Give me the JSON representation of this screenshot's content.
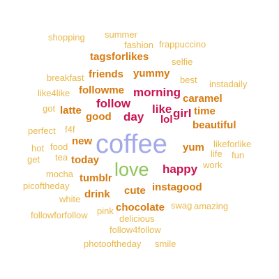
{
  "colors": {
    "gold": "#e8b84a",
    "orange": "#d67a10",
    "crimson": "#c8134f",
    "periwinkle": "#a3a8e9",
    "green": "#8fc45a"
  },
  "words": [
    {
      "text": "coffee",
      "color": "#a3a8e9"
    },
    {
      "text": "love",
      "color": "#8fc45a"
    },
    {
      "text": "happy",
      "color": "#c8134f"
    },
    {
      "text": "follow",
      "color": "#c8134f"
    },
    {
      "text": "morning",
      "color": "#c8134f"
    },
    {
      "text": "day",
      "color": "#c8134f"
    },
    {
      "text": "like",
      "color": "#c8134f"
    },
    {
      "text": "girl",
      "color": "#c8134f"
    },
    {
      "text": "lol",
      "color": "#c8134f"
    },
    {
      "text": "tagsforlikes",
      "color": "#d67a10"
    },
    {
      "text": "friends",
      "color": "#d67a10"
    },
    {
      "text": "yummy",
      "color": "#d67a10"
    },
    {
      "text": "followme",
      "color": "#d67a10"
    },
    {
      "text": "caramel",
      "color": "#d67a10"
    },
    {
      "text": "latte",
      "color": "#d67a10"
    },
    {
      "text": "good",
      "color": "#d67a10"
    },
    {
      "text": "time",
      "color": "#d67a10"
    },
    {
      "text": "beautiful",
      "color": "#d67a10"
    },
    {
      "text": "new",
      "color": "#d67a10"
    },
    {
      "text": "yum",
      "color": "#d67a10"
    },
    {
      "text": "today",
      "color": "#d67a10"
    },
    {
      "text": "tumblr",
      "color": "#d67a10"
    },
    {
      "text": "instagood",
      "color": "#d67a10"
    },
    {
      "text": "drink",
      "color": "#d67a10"
    },
    {
      "text": "cute",
      "color": "#d67a10"
    },
    {
      "text": "chocolate",
      "color": "#d67a10"
    },
    {
      "text": "shopping",
      "color": "#e8b84a"
    },
    {
      "text": "summer",
      "color": "#e8b84a"
    },
    {
      "text": "fashion",
      "color": "#e8b84a"
    },
    {
      "text": "frappuccino",
      "color": "#e8b84a"
    },
    {
      "text": "selfie",
      "color": "#e8b84a"
    },
    {
      "text": "breakfast",
      "color": "#e8b84a"
    },
    {
      "text": "best",
      "color": "#e8b84a"
    },
    {
      "text": "instadaily",
      "color": "#e8b84a"
    },
    {
      "text": "like4like",
      "color": "#e8b84a"
    },
    {
      "text": "got",
      "color": "#e8b84a"
    },
    {
      "text": "perfect",
      "color": "#e8b84a"
    },
    {
      "text": "f4f",
      "color": "#e8b84a"
    },
    {
      "text": "hot",
      "color": "#e8b84a"
    },
    {
      "text": "food",
      "color": "#e8b84a"
    },
    {
      "text": "likeforlike",
      "color": "#e8b84a"
    },
    {
      "text": "life",
      "color": "#e8b84a"
    },
    {
      "text": "fun",
      "color": "#e8b84a"
    },
    {
      "text": "get",
      "color": "#e8b84a"
    },
    {
      "text": "tea",
      "color": "#e8b84a"
    },
    {
      "text": "work",
      "color": "#e8b84a"
    },
    {
      "text": "mocha",
      "color": "#e8b84a"
    },
    {
      "text": "picoftheday",
      "color": "#e8b84a"
    },
    {
      "text": "white",
      "color": "#e8b84a"
    },
    {
      "text": "swag",
      "color": "#e8b84a"
    },
    {
      "text": "amazing",
      "color": "#e8b84a"
    },
    {
      "text": "followforfollow",
      "color": "#e8b84a"
    },
    {
      "text": "pink",
      "color": "#e8b84a"
    },
    {
      "text": "delicious",
      "color": "#e8b84a"
    },
    {
      "text": "follow4follow",
      "color": "#e8b84a"
    },
    {
      "text": "photooftheday",
      "color": "#e8b84a"
    },
    {
      "text": "smile",
      "color": "#e8b84a"
    }
  ]
}
